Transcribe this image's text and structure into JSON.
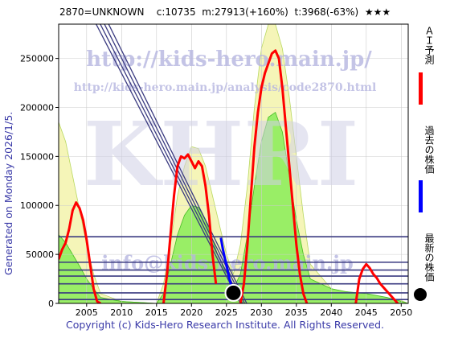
{
  "header": {
    "code": "2870=UNKNOWN",
    "c": "c:10735",
    "m": "m:27913(+160%)",
    "t": "t:3968(-63%)",
    "stars": "★★★"
  },
  "side_label": "Generated on Monday 2026/1/5.",
  "copyright": "Copyright (c) Kids-Hero Research Institute. All Rights Reserved.",
  "watermark": {
    "url": "http://kids-hero.main.jp/",
    "url2": "http://kids-hero.main.jp/analysis/code2870.html",
    "logo": "KHRI",
    "email": "info@kids-hero.main.jp"
  },
  "legend": {
    "ai": "ＡＩ予測",
    "past": "過去の株価",
    "latest": "最新の株価",
    "colors": {
      "ai": "#ff0000",
      "past": "#0000ff",
      "latest": "#000000"
    }
  },
  "chart_data": {
    "type": "line",
    "xlim": [
      2001,
      2051
    ],
    "ylim": [
      0,
      285000
    ],
    "x_ticks": [
      2005,
      2010,
      2015,
      2020,
      2025,
      2030,
      2035,
      2040,
      2045,
      2050
    ],
    "y_ticks": [
      0,
      50000,
      100000,
      150000,
      200000,
      250000
    ],
    "y_tick_labels": [
      "0",
      "50000",
      "100000",
      "150000",
      "200000",
      "250000"
    ],
    "horizontal_lines": [
      68000,
      42000,
      34000,
      27913,
      20000,
      10735,
      3968
    ],
    "trend_lines": [
      {
        "x": [
          2006.0,
          2027.0
        ],
        "y": [
          290000,
          0
        ]
      },
      {
        "x": [
          2006.6,
          2027.3
        ],
        "y": [
          290000,
          0
        ]
      },
      {
        "x": [
          2007.2,
          2027.6
        ],
        "y": [
          290000,
          0
        ]
      },
      {
        "x": [
          2007.8,
          2027.9
        ],
        "y": [
          290000,
          0
        ]
      }
    ],
    "series": [
      {
        "name": "ＡＩ予測",
        "segments": [
          {
            "x": [
              2001.0,
              2001.5,
              2002.0,
              2002.5,
              2003.0,
              2003.5,
              2004.0,
              2004.5,
              2005.0,
              2005.5,
              2006.0,
              2006.5,
              2007.0
            ],
            "y": [
              45000,
              55000,
              62000,
              76000,
              95000,
              103000,
              97000,
              85000,
              65000,
              40000,
              15000,
              2000,
              0
            ]
          },
          {
            "x": [
              2016.0,
              2016.5,
              2017.0,
              2017.5,
              2018.0,
              2018.5,
              2019.0,
              2019.5,
              2020.0,
              2020.5,
              2021.0,
              2021.5,
              2022.0,
              2022.5,
              2023.0,
              2023.5
            ],
            "y": [
              0,
              30000,
              70000,
              110000,
              140000,
              150000,
              148000,
              152000,
              145000,
              138000,
              145000,
              140000,
              120000,
              90000,
              50000,
              20000
            ]
          },
          {
            "x": [
              2027.0,
              2027.5,
              2028.0,
              2028.5,
              2029.0,
              2029.5,
              2030.0,
              2030.5,
              2031.0,
              2031.5,
              2032.0,
              2032.5,
              2033.0,
              2033.5,
              2034.0,
              2034.5,
              2035.0,
              2035.5,
              2036.0,
              2036.5
            ],
            "y": [
              0,
              20000,
              60000,
              110000,
              160000,
              195000,
              220000,
              235000,
              245000,
              255000,
              258000,
              250000,
              220000,
              180000,
              140000,
              100000,
              60000,
              30000,
              10000,
              0
            ]
          },
          {
            "x": [
              2043.5,
              2044.0,
              2044.5,
              2045.0,
              2045.5,
              2046.0,
              2046.5,
              2047.0,
              2047.5,
              2048.0,
              2048.5,
              2049.0,
              2049.5
            ],
            "y": [
              0,
              25000,
              35000,
              40000,
              36000,
              30000,
              26000,
              20000,
              16000,
              12000,
              8000,
              4000,
              0
            ]
          }
        ]
      },
      {
        "name": "過去の株価",
        "x": [
          2024.2,
          2024.5,
          2024.8,
          2025.1,
          2025.4,
          2025.7,
          2026.0
        ],
        "y": [
          67000,
          55000,
          45000,
          36000,
          26000,
          18000,
          12000
        ]
      },
      {
        "name": "最新の株価",
        "x": [
          2026.0
        ],
        "y": [
          10735
        ]
      }
    ],
    "areas": [
      {
        "fill": "#f5f5b8",
        "x": [
          2001,
          2002,
          2003,
          2004,
          2005,
          2006,
          2007,
          2010,
          2015,
          2016,
          2017,
          2018,
          2019,
          2020,
          2021,
          2022,
          2023,
          2024,
          2025,
          2026,
          2027,
          2028,
          2029,
          2030,
          2031,
          2032,
          2033,
          2034,
          2035,
          2036,
          2037,
          2040,
          2045,
          2050,
          2051
        ],
        "y": [
          185000,
          165000,
          130000,
          95000,
          60000,
          30000,
          10000,
          2000,
          0,
          20000,
          60000,
          110000,
          140000,
          160000,
          158000,
          140000,
          110000,
          80000,
          50000,
          30000,
          60000,
          120000,
          200000,
          260000,
          285000,
          285000,
          260000,
          210000,
          150000,
          90000,
          40000,
          15000,
          8000,
          3000,
          0
        ]
      },
      {
        "fill": "#99ee66",
        "x": [
          2001,
          2002,
          2003,
          2004,
          2005,
          2006,
          2007,
          2010,
          2015,
          2016,
          2017,
          2018,
          2019,
          2020,
          2021,
          2022,
          2023,
          2024,
          2025,
          2026,
          2027,
          2028,
          2029,
          2030,
          2031,
          2032,
          2033,
          2034,
          2035,
          2036,
          2037,
          2040,
          2042,
          2045,
          2048,
          2051
        ],
        "y": [
          70000,
          62000,
          50000,
          38000,
          25000,
          15000,
          6000,
          2000,
          0,
          10000,
          40000,
          70000,
          90000,
          100000,
          98000,
          85000,
          65000,
          45000,
          30000,
          15000,
          30000,
          70000,
          120000,
          165000,
          190000,
          195000,
          175000,
          130000,
          85000,
          50000,
          25000,
          15000,
          12000,
          10000,
          6000,
          0
        ]
      }
    ]
  }
}
